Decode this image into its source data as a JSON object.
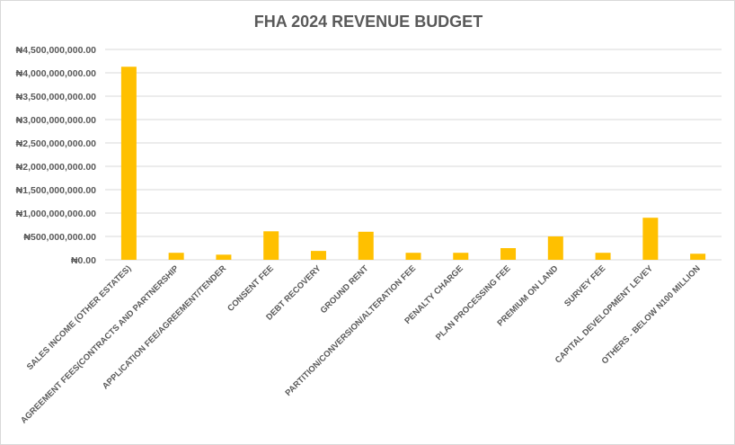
{
  "chart_data": {
    "type": "bar",
    "title": "FHA 2024 REVENUE BUDGET",
    "xlabel": "",
    "ylabel": "",
    "ylim": [
      0,
      4500000000
    ],
    "y_ticks": [
      0,
      500000000,
      1000000000,
      1500000000,
      2000000000,
      2500000000,
      3000000000,
      3500000000,
      4000000000,
      4500000000
    ],
    "y_tick_labels": [
      "₦0.00",
      "₦500,000,000.00",
      "₦1,000,000,000.00",
      "₦1,500,000,000.00",
      "₦2,000,000,000.00",
      "₦2,500,000,000.00",
      "₦3,000,000,000.00",
      "₦3,500,000,000.00",
      "₦4,000,000,000.00",
      "₦4,500,000,000.00"
    ],
    "categories": [
      "SALES INCOME (OTHER ESTATES)",
      "AGREEMENT FEES(CONTRACTS AND PARTNERSHIP",
      "APPLICATION FEE/AGREEMENT/TENDER",
      "CONSENT FEE",
      "DEBT RECOVERY",
      "GROUND RENT",
      "PARTITION/CONVERSION/ALTERATION FEE",
      "PENALTY CHARGE",
      "PLAN PROCESSING FEE",
      "PREMIUM ON LAND",
      "SURVEY FEE",
      "CAPITAL DEVELOPMENT LEVEY",
      "OTHERS - BELOW N100 MILLION"
    ],
    "values": [
      4130000000,
      150000000,
      110000000,
      610000000,
      190000000,
      600000000,
      150000000,
      150000000,
      250000000,
      500000000,
      150000000,
      900000000,
      130000000
    ],
    "bar_color": "#FFC000",
    "grid": true,
    "gridline_color": "#d9d9d9",
    "legend": "none"
  }
}
